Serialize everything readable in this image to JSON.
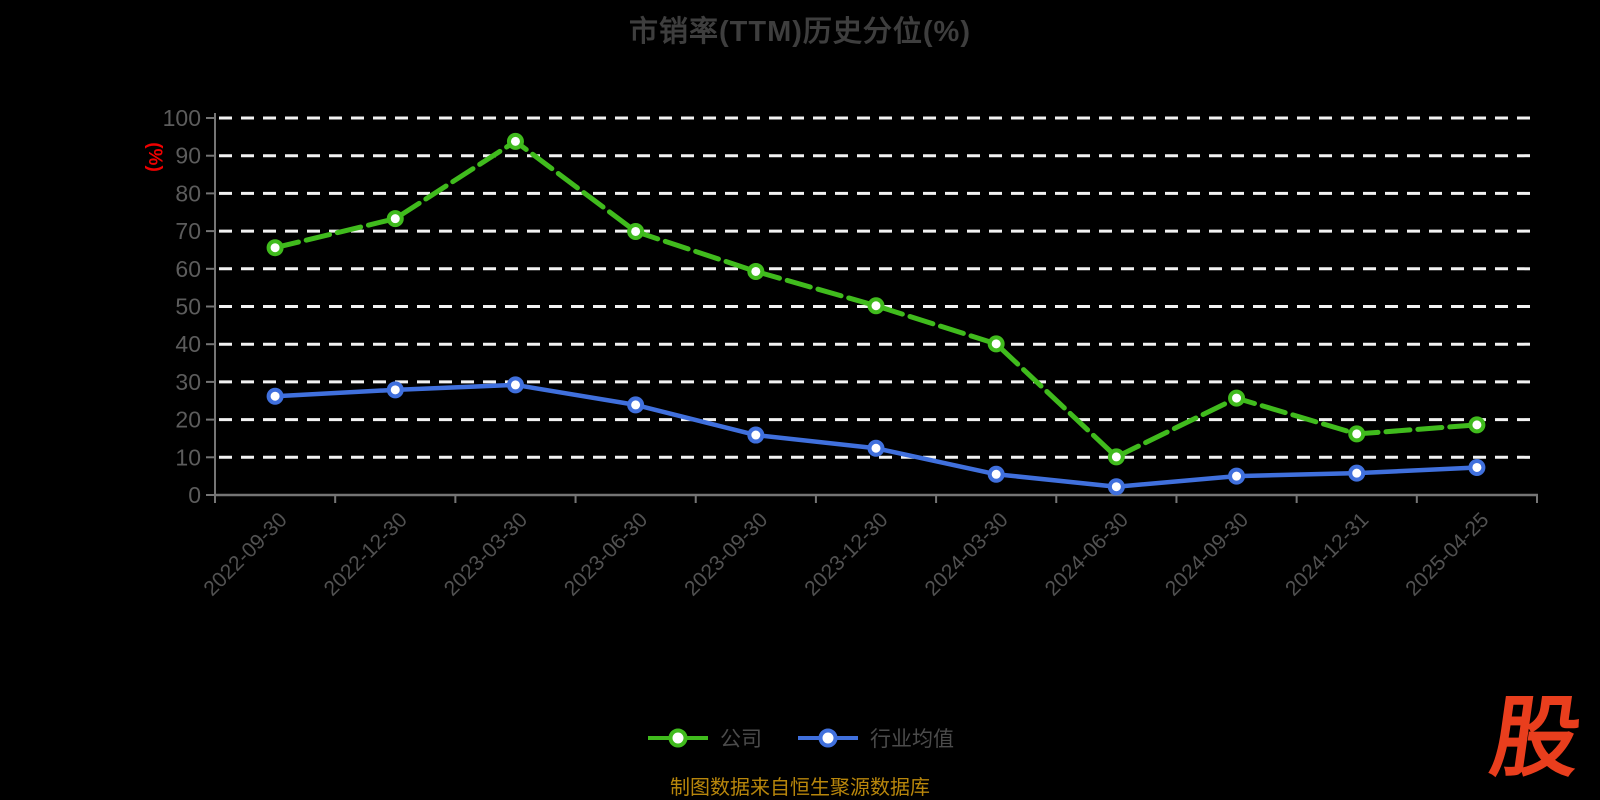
{
  "chart": {
    "title": "市销率(TTM)历史分位(%)",
    "y_unit": "(%)",
    "source_note": "制图数据来自恒生聚源数据库"
  },
  "branding": {
    "logo_char": "股"
  },
  "colors": {
    "background": "#000000",
    "title_text": "#3e3e3e",
    "axis_line": "#757575",
    "y_tick_label": "#5c5c5c",
    "x_tick_label": "#525252",
    "grid_line": "#f2f2f2",
    "legend_text": "#4b4b4b",
    "y_unit_text": "#f00000",
    "source_text": "#b8860b",
    "logo_red": "#e93e1d",
    "company_green": "#40bb1d",
    "industry_blue": "#4070dd",
    "marker_fill": "#ffffff"
  },
  "chart_data": {
    "type": "line",
    "title": "市销率(TTM)历史分位(%)",
    "xlabel": "",
    "ylabel": "(%)",
    "ylim": [
      0,
      100
    ],
    "y_interval": 10,
    "grid": "horizontal-dashed-white",
    "legend_position": "bottom-center",
    "categories": [
      "2022-09-30",
      "2022-12-30",
      "2023-03-30",
      "2023-06-30",
      "2023-09-30",
      "2023-12-30",
      "2024-03-30",
      "2024-06-30",
      "2024-09-30",
      "2024-12-31",
      "2025-04-25"
    ],
    "series": [
      {
        "name": "公司",
        "color": "#40bb1d",
        "line_style": "dashed",
        "values": [
          65.6,
          73.3,
          93.8,
          69.9,
          59.3,
          50.2,
          40.1,
          10.1,
          25.7,
          16.2,
          18.6
        ]
      },
      {
        "name": "行业均值",
        "color": "#4070dd",
        "line_style": "solid",
        "values": [
          26.2,
          27.9,
          29.2,
          23.9,
          15.9,
          12.4,
          5.5,
          2.2,
          5.0,
          5.8,
          7.3
        ]
      }
    ]
  }
}
